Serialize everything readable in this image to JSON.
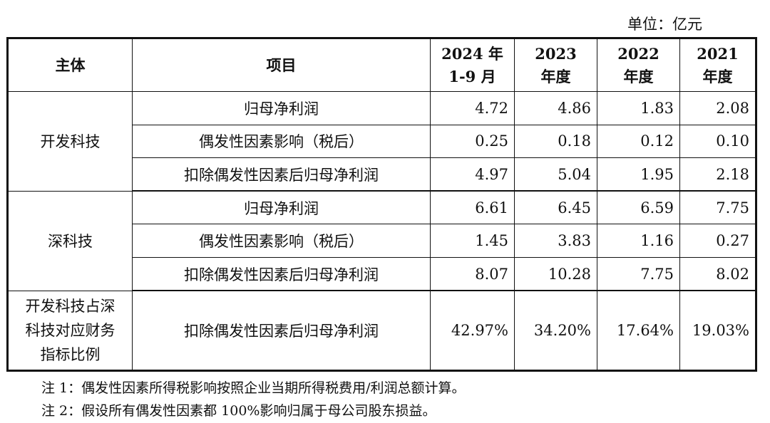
{
  "unit_label": "单位：亿元",
  "table": {
    "headers": {
      "entity": "主体",
      "item": "项目",
      "periods": [
        {
          "line1": "2024 年",
          "line2": "1-9 月"
        },
        {
          "line1": "2023",
          "line2": "年度"
        },
        {
          "line1": "2022",
          "line2": "年度"
        },
        {
          "line1": "2021",
          "line2": "年度"
        }
      ]
    },
    "groups": [
      {
        "entity": "开发科技",
        "rows": [
          {
            "item": "归母净利润",
            "values": [
              "4.72",
              "4.86",
              "1.83",
              "2.08"
            ]
          },
          {
            "item": "偶发性因素影响（税后）",
            "values": [
              "0.25",
              "0.18",
              "0.12",
              "0.10"
            ]
          },
          {
            "item": "扣除偶发性因素后归母净利润",
            "values": [
              "4.97",
              "5.04",
              "1.95",
              "2.18"
            ]
          }
        ]
      },
      {
        "entity": "深科技",
        "rows": [
          {
            "item": "归母净利润",
            "values": [
              "6.61",
              "6.45",
              "6.59",
              "7.75"
            ]
          },
          {
            "item": "偶发性因素影响（税后）",
            "values": [
              "1.45",
              "3.83",
              "1.16",
              "0.27"
            ]
          },
          {
            "item": "扣除偶发性因素后归母净利润",
            "values": [
              "8.07",
              "10.28",
              "7.75",
              "8.02"
            ]
          }
        ]
      }
    ],
    "ratio_row": {
      "entity_lines": [
        "开发科技占深",
        "科技对应财务",
        "指标比例"
      ],
      "item": "扣除偶发性因素后归母净利润",
      "values": [
        "42.97%",
        "34.20%",
        "17.64%",
        "19.03%"
      ]
    }
  },
  "notes": [
    "注 1：偶发性因素所得税影响按照企业当期所得税费用/利润总额计算。",
    "注 2：假设所有偶发性因素都 100%影响归属于母公司股东损益。"
  ]
}
